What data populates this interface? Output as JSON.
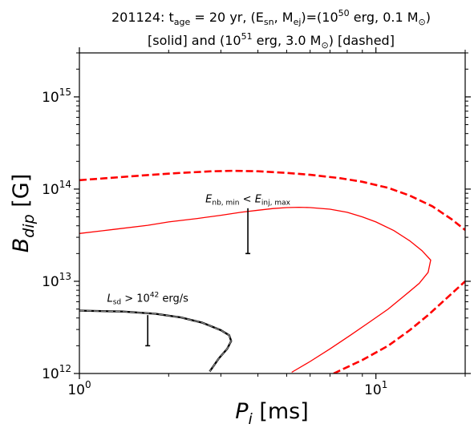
{
  "chart_data": {
    "type": "line",
    "title_line1": "201124: t",
    "title_age_sub": "age",
    "title_age_val": " = 20 yr, (E",
    "title_esn_sub": "sn",
    "title_mej": ", M",
    "title_mej_sub": "ej",
    "title_eq": ")=(10",
    "title_exp1": "50",
    "title_mid1": " erg, 0.1 M",
    "title_sun": "⊙",
    "title_close1": ")",
    "title_line2a": "[solid] and (10",
    "title_exp2": "51",
    "title_mid2": " erg, 3.0 M",
    "title_close2": ") [dashed]",
    "xlabel_main": "P",
    "xlabel_sub": "i",
    "xlabel_unit": " [ms]",
    "ylabel_main": "B",
    "ylabel_sub": "dip",
    "ylabel_unit": " [G]",
    "x_scale": "log",
    "y_scale": "log",
    "xlim": [
      1,
      20
    ],
    "ylim": [
      1000000000000.0,
      3000000000000000.0
    ],
    "x_ticks": [
      {
        "value": 1,
        "base": "10",
        "exp": "0"
      },
      {
        "value": 10,
        "base": "10",
        "exp": "1"
      }
    ],
    "y_ticks": [
      {
        "value": 1000000000000.0,
        "base": "10",
        "exp": "12"
      },
      {
        "value": 10000000000000.0,
        "base": "10",
        "exp": "13"
      },
      {
        "value": 100000000000000.0,
        "base": "10",
        "exp": "14"
      },
      {
        "value": 1000000000000000.0,
        "base": "10",
        "exp": "15"
      }
    ],
    "series": [
      {
        "style": "solid",
        "color": "#ff0000",
        "points": [
          [
            1.0,
            33000000000000.0
          ],
          [
            1.3,
            36500000000000.0
          ],
          [
            1.7,
            40500000000000.0
          ],
          [
            2.0,
            44000000000000.0
          ],
          [
            2.5,
            48000000000000.0
          ],
          [
            3.0,
            52000000000000.0
          ],
          [
            3.5,
            56000000000000.0
          ],
          [
            4.0,
            59000000000000.0
          ],
          [
            4.5,
            61500000000000.0
          ],
          [
            5.0,
            63000000000000.0
          ],
          [
            5.5,
            63500000000000.0
          ],
          [
            6.0,
            63000000000000.0
          ],
          [
            7.0,
            60500000000000.0
          ],
          [
            8.0,
            56000000000000.0
          ],
          [
            9.0,
            50000000000000.0
          ],
          [
            10.0,
            44000000000000.0
          ],
          [
            11.5,
            35500000000000.0
          ],
          [
            13.0,
            27500000000000.0
          ],
          [
            14.3,
            21500000000000.0
          ],
          [
            15.3,
            17000000000000.0
          ],
          [
            15.0,
            12500000000000.0
          ],
          [
            14.0,
            9500000000000.0
          ],
          [
            12.5,
            7000000000000.0
          ],
          [
            11.0,
            5000000000000.0
          ],
          [
            9.5,
            3600000000000.0
          ],
          [
            8.2,
            2600000000000.0
          ],
          [
            7.0,
            1850000000000.0
          ],
          [
            6.0,
            1350000000000.0
          ],
          [
            5.2,
            1030000000000.0
          ]
        ]
      },
      {
        "style": "dashed",
        "color": "#ff0000",
        "points": [
          [
            1.0,
            125000000000000.0
          ],
          [
            1.3,
            133000000000000.0
          ],
          [
            1.7,
            142000000000000.0
          ],
          [
            2.2,
            150000000000000.0
          ],
          [
            2.8,
            156000000000000.0
          ],
          [
            3.3,
            158000000000000.0
          ],
          [
            4.0,
            156000000000000.0
          ],
          [
            5.0,
            150000000000000.0
          ],
          [
            6.0,
            143000000000000.0
          ],
          [
            7.5,
            132000000000000.0
          ],
          [
            9.0,
            120000000000000.0
          ],
          [
            11.0,
            103000000000000.0
          ],
          [
            13.0,
            85000000000000.0
          ],
          [
            15.5,
            65000000000000.0
          ],
          [
            18.0,
            47000000000000.0
          ],
          [
            20.0,
            36000000000000.0
          ]
        ]
      },
      {
        "style": "dashed",
        "color": "#ff0000",
        "points": [
          [
            7.2,
            1000000000000.0
          ],
          [
            9.0,
            1400000000000.0
          ],
          [
            11.0,
            2000000000000.0
          ],
          [
            13.0,
            2950000000000.0
          ],
          [
            15.0,
            4300000000000.0
          ],
          [
            17.0,
            6200000000000.0
          ],
          [
            20.0,
            10000000000000.0
          ]
        ]
      },
      {
        "style": "solid",
        "color": "#000000",
        "points": [
          [
            1.0,
            4800000000000.0
          ],
          [
            1.4,
            4700000000000.0
          ],
          [
            1.8,
            4450000000000.0
          ],
          [
            2.2,
            4050000000000.0
          ],
          [
            2.6,
            3550000000000.0
          ],
          [
            3.0,
            2950000000000.0
          ],
          [
            3.2,
            2600000000000.0
          ],
          [
            3.25,
            2250000000000.0
          ],
          [
            3.15,
            1850000000000.0
          ],
          [
            2.95,
            1450000000000.0
          ],
          [
            2.75,
            1050000000000.0
          ]
        ]
      },
      {
        "style": "dashed",
        "color": "#000000",
        "points": [
          [
            1.0,
            4800000000000.0
          ],
          [
            1.4,
            4700000000000.0
          ],
          [
            1.8,
            4450000000000.0
          ],
          [
            2.2,
            4050000000000.0
          ],
          [
            2.6,
            3550000000000.0
          ],
          [
            3.0,
            2950000000000.0
          ],
          [
            3.2,
            2600000000000.0
          ],
          [
            3.25,
            2250000000000.0
          ],
          [
            3.15,
            1850000000000.0
          ],
          [
            2.95,
            1450000000000.0
          ],
          [
            2.75,
            1050000000000.0
          ]
        ]
      }
    ],
    "annotations": [
      {
        "name": "nb-annotation",
        "label_main": "E",
        "label_sub1": "nb, min",
        "label_lt": " < E",
        "label_sub2": "inj, max",
        "x": 3.7,
        "label_y": 72000000000000.0,
        "bar": [
          62000000000000.0,
          20000000000000.0
        ]
      },
      {
        "name": "lsd-annotation",
        "label_main": "L",
        "label_sub1": "sd",
        "label_gt": " > 10",
        "label_exp": "42",
        "label_unit": " erg/s",
        "x": 1.7,
        "label_y": 6000000000000.0,
        "bar": [
          4300000000000.0,
          2000000000000.0
        ]
      }
    ]
  }
}
